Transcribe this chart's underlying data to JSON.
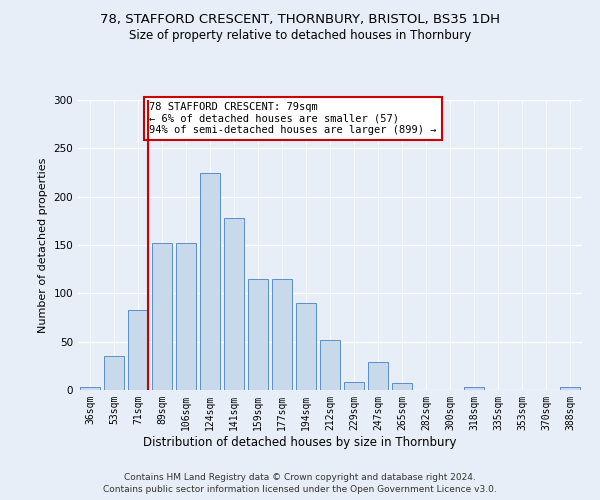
{
  "title1": "78, STAFFORD CRESCENT, THORNBURY, BRISTOL, BS35 1DH",
  "title2": "Size of property relative to detached houses in Thornbury",
  "xlabel": "Distribution of detached houses by size in Thornbury",
  "ylabel": "Number of detached properties",
  "bins": [
    "36sqm",
    "53sqm",
    "71sqm",
    "89sqm",
    "106sqm",
    "124sqm",
    "141sqm",
    "159sqm",
    "177sqm",
    "194sqm",
    "212sqm",
    "229sqm",
    "247sqm",
    "265sqm",
    "282sqm",
    "300sqm",
    "318sqm",
    "335sqm",
    "353sqm",
    "370sqm",
    "388sqm"
  ],
  "values": [
    3,
    35,
    83,
    152,
    152,
    225,
    178,
    115,
    115,
    90,
    52,
    8,
    29,
    7,
    0,
    0,
    3,
    0,
    0,
    0,
    3
  ],
  "bar_color": "#c9d9ec",
  "bar_edge_color": "#5b8fc9",
  "vline_x_index": 2,
  "vline_color": "#cc0000",
  "annotation_text": "78 STAFFORD CRESCENT: 79sqm\n← 6% of detached houses are smaller (57)\n94% of semi-detached houses are larger (899) →",
  "annotation_box_color": "white",
  "annotation_box_edge_color": "#cc0000",
  "footnote1": "Contains HM Land Registry data © Crown copyright and database right 2024.",
  "footnote2": "Contains public sector information licensed under the Open Government Licence v3.0.",
  "ylim": [
    0,
    300
  ],
  "yticks": [
    0,
    50,
    100,
    150,
    200,
    250,
    300
  ],
  "background_color": "#e8eef7",
  "plot_background": "#e8eef7",
  "grid_color": "white",
  "title_fontsize": 9.5,
  "subtitle_fontsize": 8.5
}
